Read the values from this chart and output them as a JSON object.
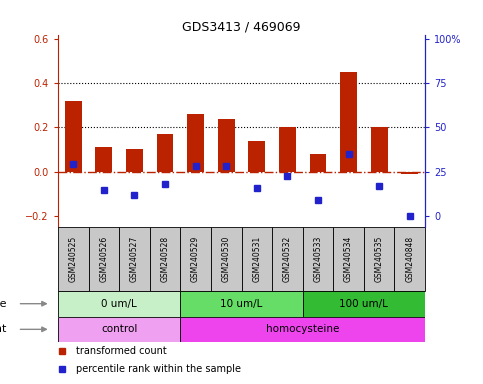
{
  "title": "GDS3413 / 469069",
  "samples": [
    "GSM240525",
    "GSM240526",
    "GSM240527",
    "GSM240528",
    "GSM240529",
    "GSM240530",
    "GSM240531",
    "GSM240532",
    "GSM240533",
    "GSM240534",
    "GSM240535",
    "GSM240848"
  ],
  "transformed_count": [
    0.32,
    0.11,
    0.1,
    0.17,
    0.26,
    0.24,
    0.14,
    0.2,
    0.08,
    0.45,
    0.2,
    -0.01
  ],
  "percentile_rank_scaled": [
    0.035,
    -0.085,
    -0.105,
    -0.055,
    0.025,
    0.025,
    -0.075,
    -0.02,
    -0.13,
    0.08,
    -0.065,
    -0.2
  ],
  "ylim": [
    -0.25,
    0.62
  ],
  "yticks_left": [
    -0.2,
    0.0,
    0.2,
    0.4,
    0.6
  ],
  "yticks_right_vals": [
    0,
    25,
    50,
    75,
    100
  ],
  "yticks_right_pos": [
    -0.2,
    0.0,
    0.2,
    0.4,
    0.6
  ],
  "hlines": [
    0.2,
    0.4
  ],
  "bar_color": "#BB2200",
  "square_color": "#2222CC",
  "zero_line_color": "#BB2200",
  "left_axis_color": "#BB2200",
  "right_axis_color": "#2222CC",
  "dose_groups": [
    {
      "label": "0 um/L",
      "start": 0,
      "end": 4,
      "color": "#C8F0C8"
    },
    {
      "label": "10 um/L",
      "start": 4,
      "end": 8,
      "color": "#66DD66"
    },
    {
      "label": "100 um/L",
      "start": 8,
      "end": 12,
      "color": "#33BB33"
    }
  ],
  "agent_groups": [
    {
      "label": "control",
      "start": 0,
      "end": 4,
      "color": "#F0A0F0"
    },
    {
      "label": "homocysteine",
      "start": 4,
      "end": 12,
      "color": "#EE44EE"
    }
  ],
  "legend_items": [
    {
      "color": "#BB2200",
      "label": "transformed count"
    },
    {
      "color": "#2222CC",
      "label": "percentile rank within the sample"
    }
  ],
  "bar_width": 0.55,
  "background_color": "#ffffff",
  "sample_box_color": "#C8C8C8",
  "label_fontsize": 7,
  "tick_fontsize": 7
}
